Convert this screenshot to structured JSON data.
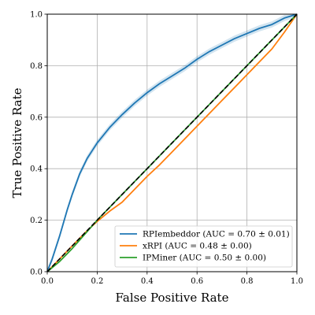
{
  "chart_data": {
    "type": "line",
    "title": "",
    "xlabel": "False Positive Rate",
    "ylabel": "True Positive Rate",
    "xlim": [
      0.0,
      1.0
    ],
    "ylim": [
      0.0,
      1.0
    ],
    "xticks": [
      "0.0",
      "0.2",
      "0.4",
      "0.6",
      "0.8",
      "1.0"
    ],
    "yticks": [
      "0.0",
      "0.2",
      "0.4",
      "0.6",
      "0.8",
      "1.0"
    ],
    "grid": true,
    "legend_position": "bottom-right",
    "series": [
      {
        "name": "RPIembeddor (AUC = 0.70 ± 0.01)",
        "color": "#1f77b4",
        "band": 0.012,
        "x": [
          0.0,
          0.02,
          0.05,
          0.08,
          0.1,
          0.13,
          0.16,
          0.18,
          0.2,
          0.25,
          0.3,
          0.35,
          0.4,
          0.45,
          0.5,
          0.55,
          0.6,
          0.65,
          0.7,
          0.75,
          0.8,
          0.85,
          0.9,
          0.95,
          1.0
        ],
        "y": [
          0.0,
          0.05,
          0.14,
          0.24,
          0.3,
          0.38,
          0.44,
          0.47,
          0.5,
          0.56,
          0.61,
          0.655,
          0.695,
          0.73,
          0.76,
          0.79,
          0.825,
          0.855,
          0.88,
          0.905,
          0.925,
          0.945,
          0.96,
          0.985,
          1.0
        ]
      },
      {
        "name": "xRPI (AUC = 0.48 ± 0.00)",
        "color": "#ff7f0e",
        "band": 0,
        "x": [
          0.0,
          0.03,
          0.06,
          0.1,
          0.15,
          0.2,
          0.25,
          0.3,
          0.35,
          0.4,
          0.45,
          0.5,
          0.55,
          0.6,
          0.65,
          0.7,
          0.75,
          0.8,
          0.85,
          0.9,
          0.95,
          1.0
        ],
        "y": [
          0.0,
          0.03,
          0.06,
          0.1,
          0.15,
          0.195,
          0.235,
          0.27,
          0.32,
          0.37,
          0.415,
          0.465,
          0.515,
          0.565,
          0.615,
          0.665,
          0.715,
          0.765,
          0.815,
          0.865,
          0.93,
          1.0
        ]
      },
      {
        "name": "IPMiner (AUC = 0.50 ± 0.00)",
        "color": "#2ca02c",
        "band": 0,
        "x": [
          0.0,
          0.05,
          0.1,
          0.2,
          0.3,
          0.4,
          0.5,
          0.6,
          0.7,
          0.8,
          0.9,
          1.0
        ],
        "y": [
          0.0,
          0.04,
          0.09,
          0.2,
          0.3,
          0.4,
          0.5,
          0.6,
          0.7,
          0.8,
          0.9,
          1.0
        ]
      }
    ],
    "reference_line": {
      "x": [
        0.0,
        1.0
      ],
      "y": [
        0.0,
        1.0
      ],
      "color": "#000000",
      "style": "dashed"
    }
  }
}
